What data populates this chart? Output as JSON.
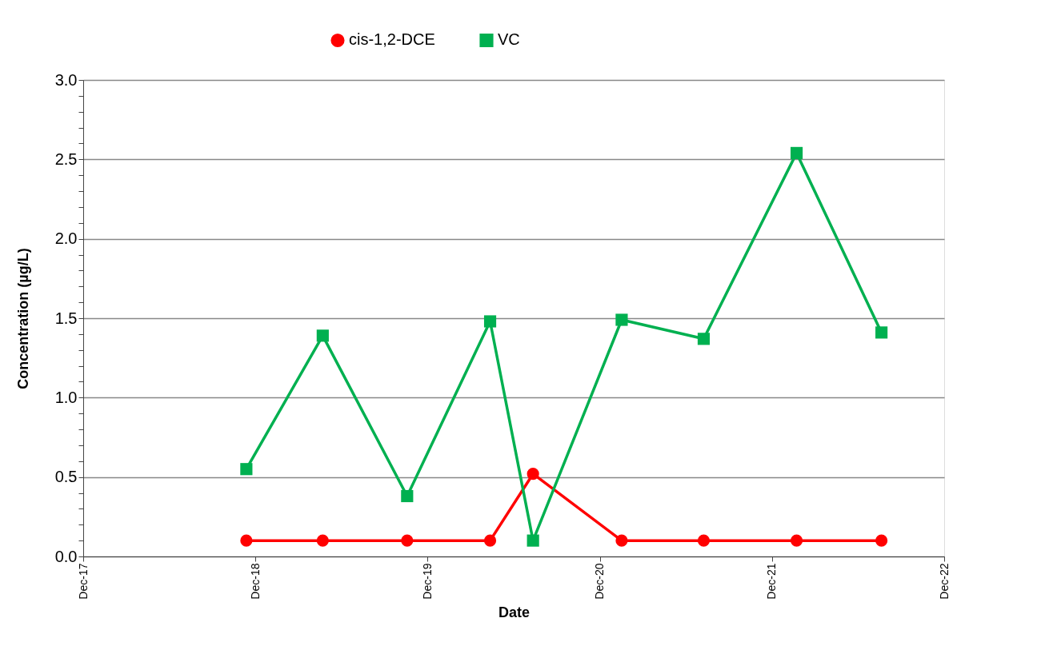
{
  "chart_data": {
    "type": "line",
    "xlabel": "Date",
    "ylabel": "Concentration (µg/L)",
    "x": [
      "2018-11-12",
      "2019-04-23",
      "2019-10-19",
      "2020-04-12",
      "2020-07-12",
      "2021-01-16",
      "2021-07-09",
      "2022-01-22",
      "2022-07-21"
    ],
    "series": [
      {
        "name": "cis-1,2-DCE",
        "color": "#ff0000",
        "marker": "circle",
        "values": [
          0.1,
          0.1,
          0.1,
          0.1,
          0.52,
          0.1,
          0.1,
          0.1,
          0.1
        ]
      },
      {
        "name": "VC",
        "color": "#00b050",
        "marker": "square",
        "values": [
          0.55,
          1.39,
          0.38,
          1.48,
          0.1,
          1.49,
          1.37,
          2.54,
          1.41
        ]
      }
    ],
    "xlim": [
      "2017-12-01",
      "2022-12-01"
    ],
    "xticks": [
      {
        "value": "2017-12-01",
        "label": "Dec-17"
      },
      {
        "value": "2018-12-01",
        "label": "Dec-18"
      },
      {
        "value": "2019-12-01",
        "label": "Dec-19"
      },
      {
        "value": "2020-12-01",
        "label": "Dec-20"
      },
      {
        "value": "2021-12-01",
        "label": "Dec-21"
      },
      {
        "value": "2022-12-01",
        "label": "Dec-22"
      }
    ],
    "ylim": [
      0,
      3
    ],
    "yticks": [
      "0.0",
      {
        "value": 0.1,
        "label": null
      },
      {
        "value": 0.2,
        "label": null
      },
      {
        "value": 0.3,
        "label": null
      },
      {
        "value": 0.4,
        "label": null
      },
      {
        "value": 0.5,
        "label": "0.5"
      },
      {
        "value": 0.6,
        "label": null
      },
      {
        "value": 0.7,
        "label": null
      },
      {
        "value": 0.8,
        "label": null
      },
      {
        "value": 0.9,
        "label": null
      },
      {
        "value": 1,
        "label": "1.0"
      },
      {
        "value": 1.1,
        "label": null
      },
      {
        "value": 1.2,
        "label": null
      },
      {
        "value": 1.3,
        "label": null
      },
      {
        "value": 1.4,
        "label": null
      },
      {
        "value": 1.5,
        "label": "1.5"
      },
      {
        "value": 1.6,
        "label": null
      },
      {
        "value": 1.7,
        "label": null
      },
      {
        "value": 1.8,
        "label": null
      },
      {
        "value": 1.9,
        "label": null
      },
      {
        "value": 2,
        "label": "2.0"
      },
      {
        "value": 2.1,
        "label": null
      },
      {
        "value": 2.2,
        "label": null
      },
      {
        "value": 2.3,
        "label": null
      },
      {
        "value": 2.4,
        "label": null
      },
      {
        "value": 2.5,
        "label": "2.5"
      },
      {
        "value": 2.6,
        "label": null
      },
      {
        "value": 2.7,
        "label": null
      },
      {
        "value": 2.8,
        "label": null
      },
      {
        "value": 2.9,
        "label": null
      },
      {
        "value": 3,
        "label": "3.0"
      }
    ],
    "grid": "y",
    "legend": "top",
    "line_style": "solid"
  }
}
